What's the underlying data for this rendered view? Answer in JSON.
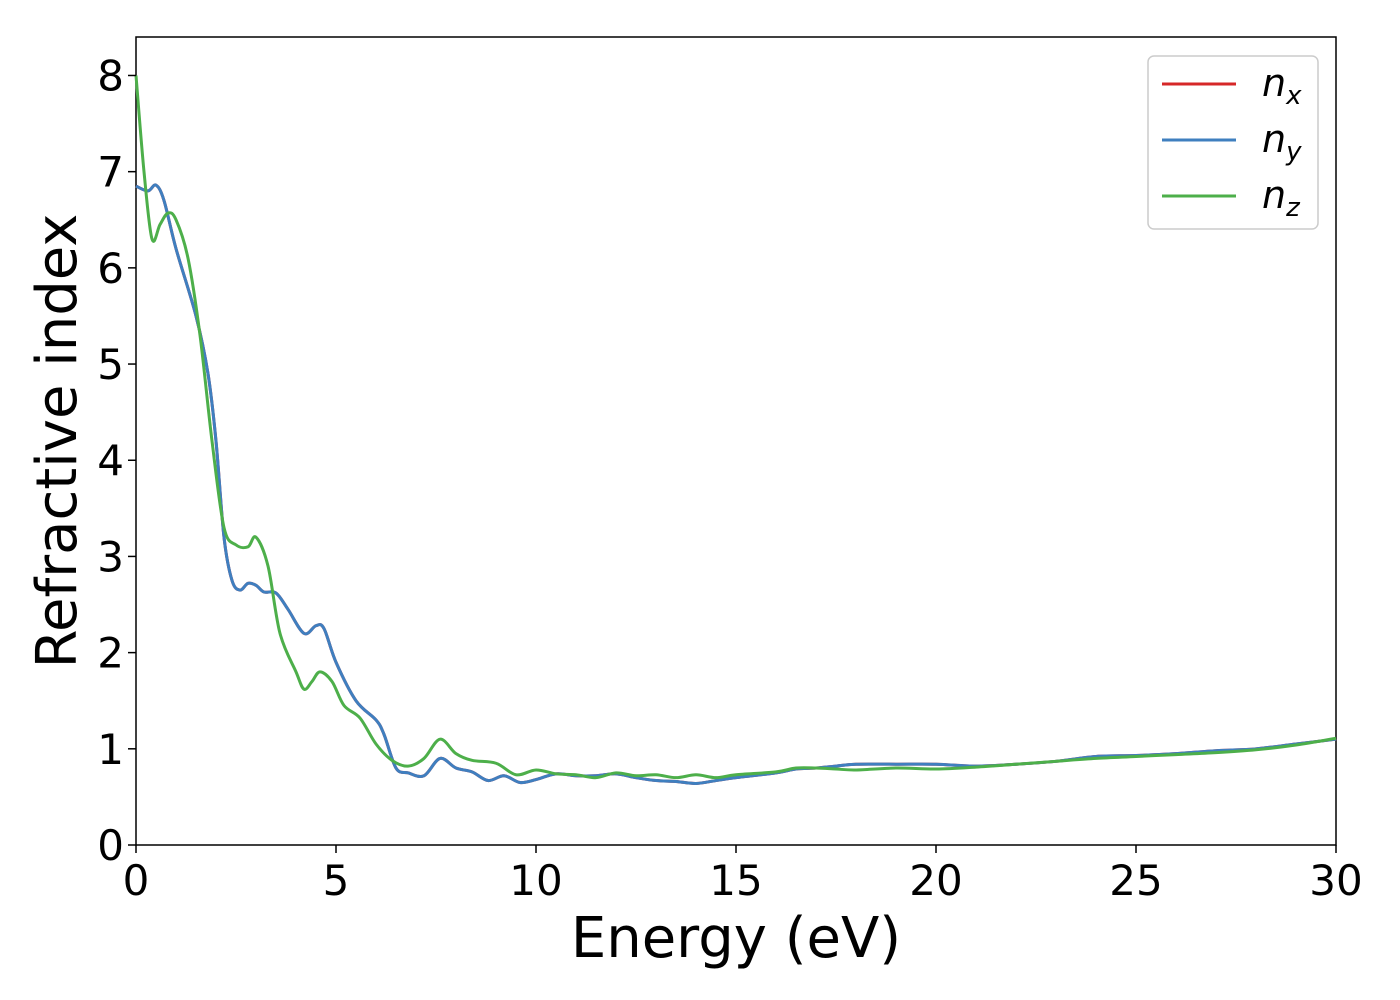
{
  "chart_data": {
    "type": "line",
    "xlabel": "Energy (eV)",
    "ylabel": "Refractive index",
    "xlim": [
      0,
      30
    ],
    "ylim": [
      0,
      8.4
    ],
    "x_ticks": [
      "0",
      "5",
      "10",
      "15",
      "20",
      "25",
      "30"
    ],
    "y_ticks": [
      "0",
      "1",
      "2",
      "3",
      "4",
      "5",
      "6",
      "7",
      "8"
    ],
    "grid": false,
    "legend_position": "top-right",
    "series": [
      {
        "name": "n",
        "subscript": "x",
        "color": "#d62728",
        "points": [
          [
            0,
            6.85
          ],
          [
            0.3,
            6.8
          ],
          [
            0.5,
            6.86
          ],
          [
            0.7,
            6.7
          ],
          [
            1.0,
            6.2
          ],
          [
            1.5,
            5.5
          ],
          [
            1.8,
            4.9
          ],
          [
            2.0,
            4.2
          ],
          [
            2.2,
            3.2
          ],
          [
            2.4,
            2.75
          ],
          [
            2.6,
            2.65
          ],
          [
            2.8,
            2.72
          ],
          [
            3.0,
            2.7
          ],
          [
            3.2,
            2.63
          ],
          [
            3.5,
            2.62
          ],
          [
            3.8,
            2.45
          ],
          [
            4.2,
            2.2
          ],
          [
            4.5,
            2.28
          ],
          [
            4.7,
            2.25
          ],
          [
            5.0,
            1.9
          ],
          [
            5.5,
            1.5
          ],
          [
            6.0,
            1.3
          ],
          [
            6.2,
            1.15
          ],
          [
            6.5,
            0.8
          ],
          [
            6.8,
            0.75
          ],
          [
            7.2,
            0.72
          ],
          [
            7.6,
            0.9
          ],
          [
            8.0,
            0.8
          ],
          [
            8.4,
            0.76
          ],
          [
            8.8,
            0.67
          ],
          [
            9.2,
            0.72
          ],
          [
            9.6,
            0.65
          ],
          [
            10,
            0.68
          ],
          [
            10.5,
            0.74
          ],
          [
            11,
            0.72
          ],
          [
            11.5,
            0.72
          ],
          [
            12,
            0.74
          ],
          [
            12.5,
            0.7
          ],
          [
            13,
            0.67
          ],
          [
            13.5,
            0.66
          ],
          [
            14,
            0.64
          ],
          [
            14.5,
            0.67
          ],
          [
            15,
            0.7
          ],
          [
            16,
            0.75
          ],
          [
            16.5,
            0.79
          ],
          [
            17,
            0.8
          ],
          [
            17.5,
            0.82
          ],
          [
            18,
            0.84
          ],
          [
            19,
            0.84
          ],
          [
            20,
            0.84
          ],
          [
            21,
            0.82
          ],
          [
            22,
            0.84
          ],
          [
            23,
            0.87
          ],
          [
            24,
            0.92
          ],
          [
            25,
            0.93
          ],
          [
            26,
            0.95
          ],
          [
            27,
            0.98
          ],
          [
            28,
            1.0
          ],
          [
            29,
            1.05
          ],
          [
            30,
            1.1
          ]
        ]
      },
      {
        "name": "n",
        "subscript": "y",
        "color": "#3f7fbf",
        "points": [
          [
            0,
            6.85
          ],
          [
            0.3,
            6.8
          ],
          [
            0.5,
            6.86
          ],
          [
            0.7,
            6.7
          ],
          [
            1.0,
            6.2
          ],
          [
            1.5,
            5.5
          ],
          [
            1.8,
            4.9
          ],
          [
            2.0,
            4.2
          ],
          [
            2.2,
            3.2
          ],
          [
            2.4,
            2.75
          ],
          [
            2.6,
            2.65
          ],
          [
            2.8,
            2.72
          ],
          [
            3.0,
            2.7
          ],
          [
            3.2,
            2.63
          ],
          [
            3.5,
            2.62
          ],
          [
            3.8,
            2.45
          ],
          [
            4.2,
            2.2
          ],
          [
            4.5,
            2.28
          ],
          [
            4.7,
            2.25
          ],
          [
            5.0,
            1.9
          ],
          [
            5.5,
            1.5
          ],
          [
            6.0,
            1.3
          ],
          [
            6.2,
            1.15
          ],
          [
            6.5,
            0.8
          ],
          [
            6.8,
            0.75
          ],
          [
            7.2,
            0.72
          ],
          [
            7.6,
            0.9
          ],
          [
            8.0,
            0.8
          ],
          [
            8.4,
            0.76
          ],
          [
            8.8,
            0.67
          ],
          [
            9.2,
            0.72
          ],
          [
            9.6,
            0.65
          ],
          [
            10,
            0.68
          ],
          [
            10.5,
            0.74
          ],
          [
            11,
            0.72
          ],
          [
            11.5,
            0.72
          ],
          [
            12,
            0.74
          ],
          [
            12.5,
            0.7
          ],
          [
            13,
            0.67
          ],
          [
            13.5,
            0.66
          ],
          [
            14,
            0.64
          ],
          [
            14.5,
            0.67
          ],
          [
            15,
            0.7
          ],
          [
            16,
            0.75
          ],
          [
            16.5,
            0.79
          ],
          [
            17,
            0.8
          ],
          [
            17.5,
            0.82
          ],
          [
            18,
            0.84
          ],
          [
            19,
            0.84
          ],
          [
            20,
            0.84
          ],
          [
            21,
            0.82
          ],
          [
            22,
            0.84
          ],
          [
            23,
            0.87
          ],
          [
            24,
            0.92
          ],
          [
            25,
            0.93
          ],
          [
            26,
            0.95
          ],
          [
            27,
            0.98
          ],
          [
            28,
            1.0
          ],
          [
            29,
            1.05
          ],
          [
            30,
            1.1
          ]
        ]
      },
      {
        "name": "n",
        "subscript": "z",
        "color": "#4daf4a",
        "points": [
          [
            0,
            8.0
          ],
          [
            0.2,
            7.0
          ],
          [
            0.4,
            6.3
          ],
          [
            0.6,
            6.45
          ],
          [
            0.8,
            6.57
          ],
          [
            1.0,
            6.5
          ],
          [
            1.3,
            6.1
          ],
          [
            1.6,
            5.3
          ],
          [
            1.9,
            4.2
          ],
          [
            2.2,
            3.3
          ],
          [
            2.5,
            3.12
          ],
          [
            2.8,
            3.1
          ],
          [
            3.0,
            3.2
          ],
          [
            3.3,
            2.9
          ],
          [
            3.6,
            2.2
          ],
          [
            4.0,
            1.8
          ],
          [
            4.2,
            1.62
          ],
          [
            4.4,
            1.7
          ],
          [
            4.6,
            1.8
          ],
          [
            4.9,
            1.7
          ],
          [
            5.2,
            1.45
          ],
          [
            5.6,
            1.32
          ],
          [
            6.0,
            1.05
          ],
          [
            6.4,
            0.88
          ],
          [
            6.8,
            0.82
          ],
          [
            7.2,
            0.9
          ],
          [
            7.6,
            1.1
          ],
          [
            8.0,
            0.95
          ],
          [
            8.4,
            0.88
          ],
          [
            9.0,
            0.85
          ],
          [
            9.5,
            0.73
          ],
          [
            10,
            0.78
          ],
          [
            10.5,
            0.74
          ],
          [
            11,
            0.73
          ],
          [
            11.5,
            0.7
          ],
          [
            12,
            0.75
          ],
          [
            12.5,
            0.72
          ],
          [
            13,
            0.73
          ],
          [
            13.5,
            0.7
          ],
          [
            14,
            0.73
          ],
          [
            14.5,
            0.7
          ],
          [
            15,
            0.73
          ],
          [
            16,
            0.76
          ],
          [
            16.5,
            0.8
          ],
          [
            17,
            0.8
          ],
          [
            17.5,
            0.79
          ],
          [
            18,
            0.78
          ],
          [
            19,
            0.8
          ],
          [
            20,
            0.79
          ],
          [
            21,
            0.81
          ],
          [
            22,
            0.84
          ],
          [
            23,
            0.87
          ],
          [
            24,
            0.9
          ],
          [
            25,
            0.92
          ],
          [
            26,
            0.94
          ],
          [
            27,
            0.96
          ],
          [
            28,
            0.99
          ],
          [
            29,
            1.04
          ],
          [
            30,
            1.11
          ]
        ]
      }
    ]
  }
}
